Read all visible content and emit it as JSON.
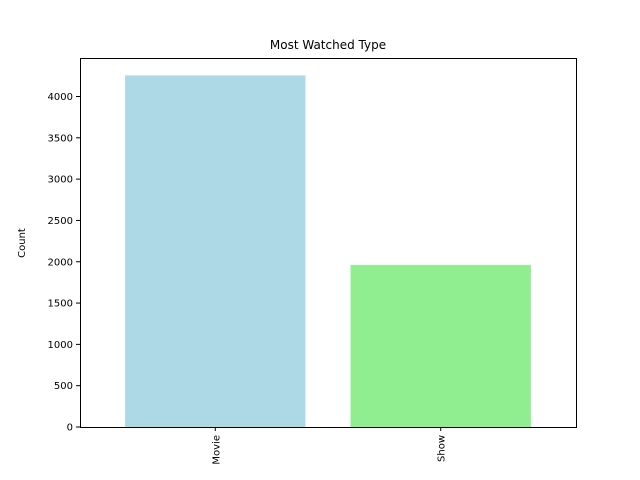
{
  "chart_data": {
    "type": "bar",
    "title": "Most Watched Type",
    "xlabel": "",
    "ylabel": "Count",
    "categories": [
      "Movie",
      "Show"
    ],
    "values": [
      4255,
      1960
    ],
    "colors": [
      "#add8e6",
      "#90ee90"
    ],
    "ylim": [
      0,
      4466
    ],
    "yticks": [
      0,
      500,
      1000,
      1500,
      2000,
      2500,
      3000,
      3500,
      4000
    ],
    "ytick_labels": [
      "0",
      "500",
      "1000",
      "1500",
      "2000",
      "2500",
      "3000",
      "3500",
      "4000"
    ],
    "grid": false,
    "legend": false,
    "x_tick_rotation": "vertical"
  }
}
